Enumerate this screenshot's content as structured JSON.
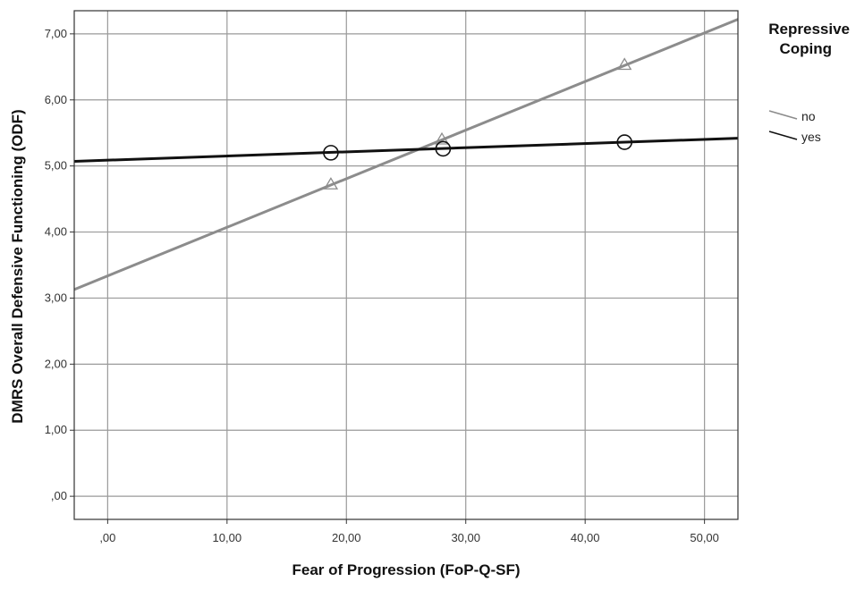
{
  "chart_data": {
    "type": "scatter",
    "title": "",
    "xlabel": "Fear of Progression (FoP-Q-SF)",
    "ylabel": "DMRS Overall Defensive Functioning (ODF)",
    "xlim": [
      -2.8,
      52.8
    ],
    "ylim": [
      -0.35,
      7.35
    ],
    "grid": true,
    "x_ticks": [
      {
        "value": 0,
        "label": ",00"
      },
      {
        "value": 10,
        "label": "10,00"
      },
      {
        "value": 20,
        "label": "20,00"
      },
      {
        "value": 30,
        "label": "30,00"
      },
      {
        "value": 40,
        "label": "40,00"
      },
      {
        "value": 50,
        "label": "50,00"
      }
    ],
    "y_ticks": [
      {
        "value": 0,
        "label": ",00"
      },
      {
        "value": 1,
        "label": "1,00"
      },
      {
        "value": 2,
        "label": "2,00"
      },
      {
        "value": 3,
        "label": "3,00"
      },
      {
        "value": 4,
        "label": "4,00"
      },
      {
        "value": 5,
        "label": "5,00"
      },
      {
        "value": 6,
        "label": "6,00"
      },
      {
        "value": 7,
        "label": "7,00"
      }
    ],
    "legend": {
      "title_line1": "Repressive",
      "title_line2": "Coping",
      "placement": "right"
    },
    "series": [
      {
        "name": "no",
        "color": "#8c8c8c",
        "marker": "triangle",
        "points": [
          {
            "x": 18.7,
            "y": 4.72
          },
          {
            "x": 28.0,
            "y": 5.4
          },
          {
            "x": 43.3,
            "y": 6.53
          }
        ],
        "fit_line": {
          "x0": -2.8,
          "y0": 3.13,
          "x1": 52.8,
          "y1": 7.22
        }
      },
      {
        "name": "yes",
        "color": "#111111",
        "marker": "circle",
        "points": [
          {
            "x": 18.7,
            "y": 5.2
          },
          {
            "x": 28.1,
            "y": 5.26
          },
          {
            "x": 43.3,
            "y": 5.36
          }
        ],
        "fit_line": {
          "x0": -2.8,
          "y0": 5.07,
          "x1": 52.8,
          "y1": 5.42
        }
      }
    ]
  }
}
